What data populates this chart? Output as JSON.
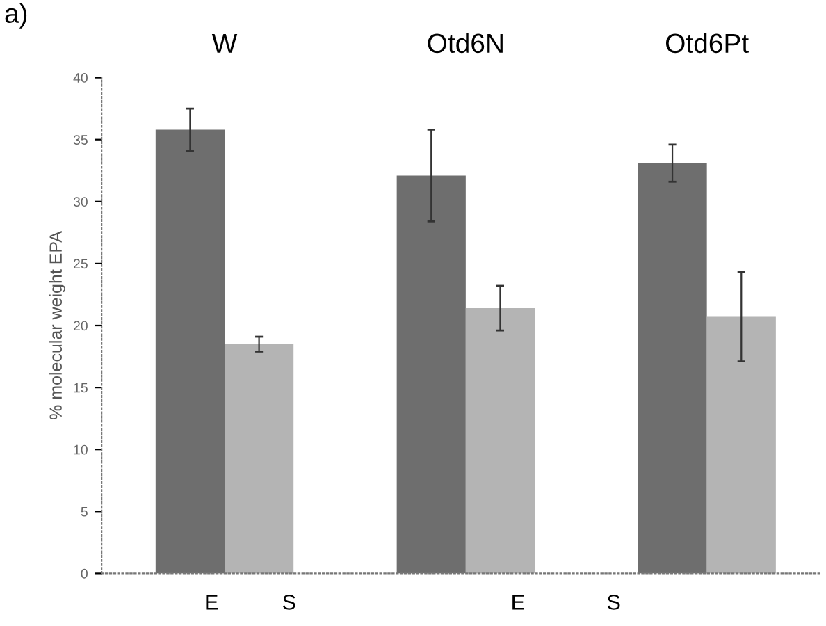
{
  "chart_data": {
    "type": "bar",
    "title": "a)",
    "ylabel": "% molecular weight EPA",
    "categories": [
      "W",
      "Otd6N",
      "Otd6Pt"
    ],
    "series": [
      {
        "color": "#6e6e6e",
        "values": [
          35.8,
          32.1,
          33.1
        ],
        "errors": [
          1.7,
          3.7,
          1.5
        ]
      },
      {
        "color": "#b4b4b4",
        "values": [
          18.5,
          21.4,
          20.7
        ],
        "errors": [
          0.6,
          1.8,
          3.6
        ]
      }
    ],
    "ylim": [
      0,
      40
    ],
    "yticks": [
      0,
      5,
      10,
      15,
      20,
      25,
      30,
      35,
      40
    ],
    "grid": false,
    "legend": false,
    "annotations": [
      "E",
      "S",
      "E",
      "S"
    ]
  }
}
